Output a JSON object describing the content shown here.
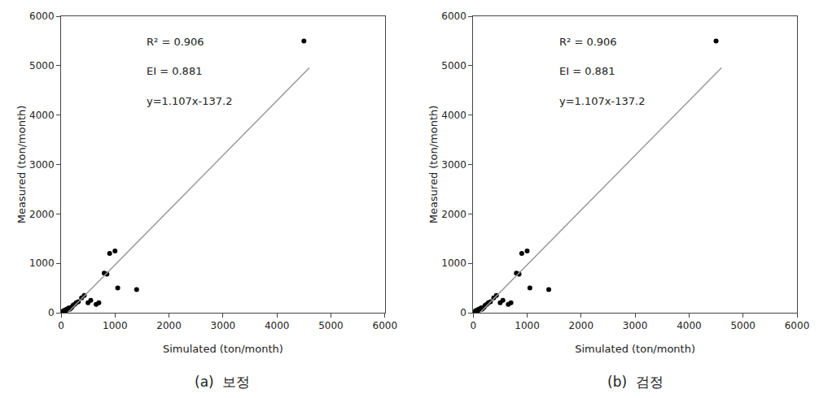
{
  "chart_data": [
    {
      "type": "scatter",
      "title": "(a)  보정",
      "xlabel": "Simulated (ton/month)",
      "ylabel": "Measured (ton/month)",
      "xlim": [
        0,
        6000
      ],
      "ylim": [
        0,
        6000
      ],
      "xticks": [
        0,
        1000,
        2000,
        3000,
        4000,
        5000,
        6000
      ],
      "yticks": [
        0,
        1000,
        2000,
        3000,
        4000,
        5000,
        6000
      ],
      "grid": false,
      "annotations": [
        "R² = 0.906",
        "EI = 0.881",
        "y=1.107x-137.2"
      ],
      "series": [
        {
          "type": "scatter",
          "color": "#000000",
          "marker": "circle",
          "x": [
            20,
            30,
            40,
            50,
            60,
            70,
            80,
            90,
            100,
            110,
            120,
            130,
            150,
            160,
            180,
            200,
            220,
            250,
            280,
            320,
            380,
            430,
            500,
            550,
            650,
            700,
            800,
            850,
            900,
            1000,
            1050,
            1400,
            4500
          ],
          "values": [
            10,
            20,
            30,
            40,
            30,
            50,
            40,
            60,
            50,
            70,
            80,
            60,
            100,
            70,
            90,
            110,
            150,
            170,
            200,
            220,
            300,
            350,
            200,
            250,
            170,
            200,
            800,
            780,
            1200,
            1250,
            500,
            470,
            5500
          ]
        },
        {
          "type": "line",
          "color": "#999999",
          "line_style": "solid",
          "x": [
            123.9385727,
            4600
          ],
          "values": [
            0,
            4955.0
          ]
        }
      ]
    },
    {
      "type": "scatter",
      "title": "(b)  검정",
      "xlabel": "Simulated (ton/month)",
      "ylabel": "Measured (ton/month)",
      "xlim": [
        0,
        6000
      ],
      "ylim": [
        0,
        6000
      ],
      "xticks": [
        0,
        1000,
        2000,
        3000,
        4000,
        5000,
        6000
      ],
      "yticks": [
        0,
        1000,
        2000,
        3000,
        4000,
        5000,
        6000
      ],
      "grid": false,
      "annotations": [
        "R² = 0.906",
        "EI = 0.881",
        "y=1.107x-137.2"
      ],
      "series": [
        {
          "type": "scatter",
          "color": "#000000",
          "marker": "circle",
          "x": [
            20,
            30,
            40,
            50,
            60,
            70,
            80,
            90,
            100,
            110,
            120,
            130,
            150,
            160,
            180,
            200,
            220,
            250,
            280,
            320,
            380,
            430,
            500,
            550,
            650,
            700,
            800,
            850,
            900,
            1000,
            1050,
            1400,
            4500
          ],
          "values": [
            10,
            20,
            30,
            40,
            30,
            50,
            40,
            60,
            50,
            70,
            80,
            60,
            100,
            70,
            90,
            110,
            150,
            170,
            200,
            220,
            300,
            350,
            200,
            250,
            170,
            200,
            800,
            780,
            1200,
            1250,
            500,
            470,
            5500
          ]
        },
        {
          "type": "line",
          "color": "#999999",
          "line_style": "solid",
          "x": [
            123.9385727,
            4600
          ],
          "values": [
            0,
            4955.0
          ]
        }
      ]
    }
  ]
}
